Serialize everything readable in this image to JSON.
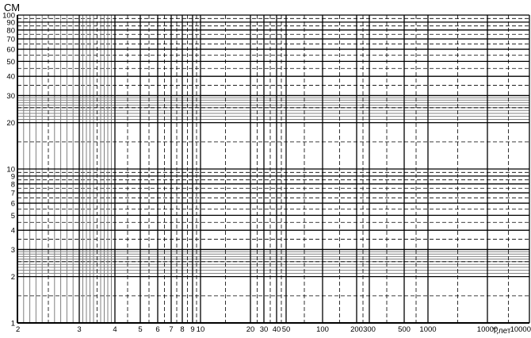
{
  "chart_data": {
    "type": "line",
    "title": "",
    "ylabel": "СМ",
    "xlabel": "Т,лет",
    "yscale": "log",
    "ylim": [
      1,
      100
    ],
    "y_ticks": [
      "1",
      "2",
      "3",
      "4",
      "5",
      "6",
      "7",
      "8",
      "9",
      "10",
      "20",
      "30",
      "40",
      "50",
      "60",
      "70",
      "80",
      "90",
      "100"
    ],
    "x_ticks": [
      "2",
      "3",
      "4",
      "5",
      "6",
      "7",
      "8",
      "9",
      "10",
      "20",
      "30",
      "40",
      "50",
      "100",
      "200",
      "300",
      "500",
      "1000",
      "10000",
      "10000"
    ],
    "grid": true,
    "series": [],
    "colors": {
      "major": "#000000",
      "minor": "#808080",
      "dashed": "#000000"
    }
  }
}
